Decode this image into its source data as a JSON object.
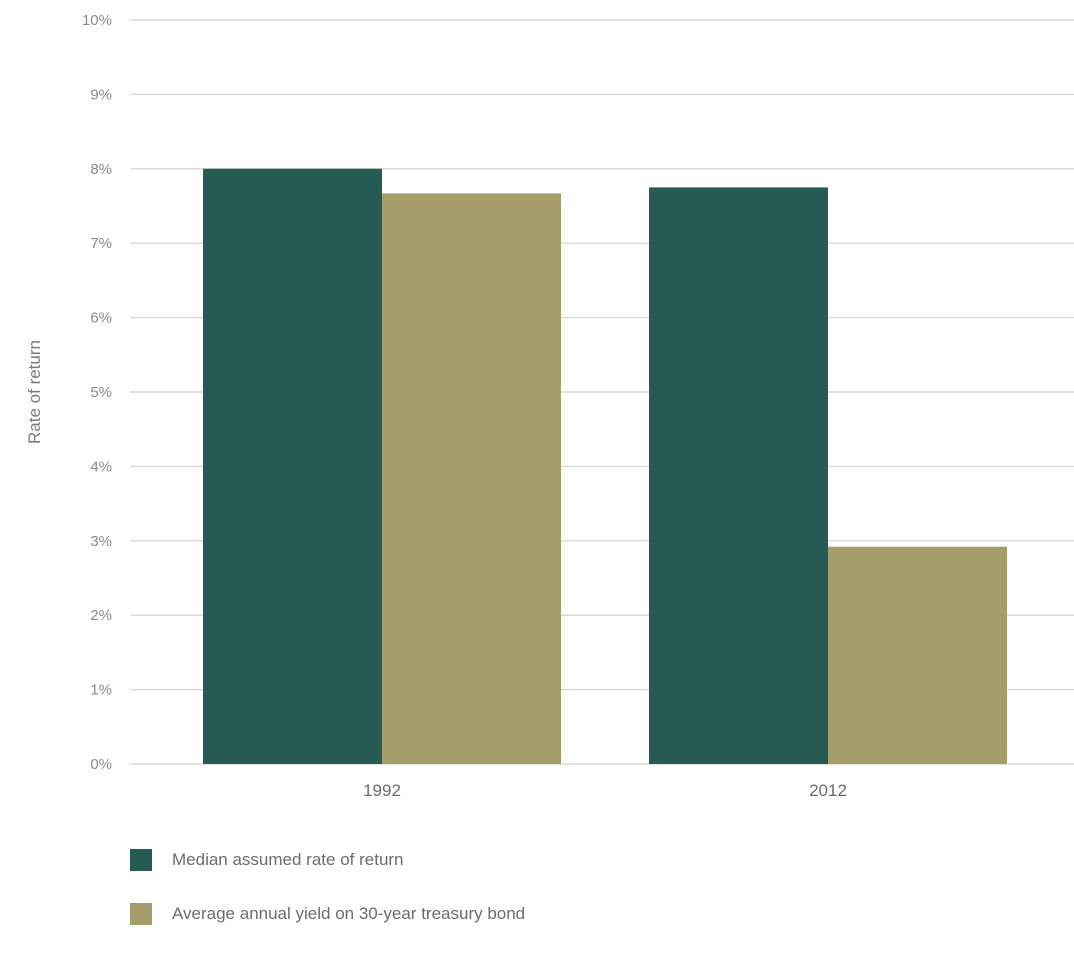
{
  "chart_data": {
    "type": "bar",
    "categories": [
      "1992",
      "2012"
    ],
    "series": [
      {
        "name": "Median assumed rate of return",
        "values": [
          8.0,
          7.75
        ],
        "color": "#265a54"
      },
      {
        "name": "Average annual yield on 30-year treasury bond",
        "values": [
          7.67,
          2.92
        ],
        "color": "#a59d6a"
      }
    ],
    "ylabel": "Rate of return",
    "yticks": [
      "0%",
      "1%",
      "2%",
      "3%",
      "4%",
      "5%",
      "6%",
      "7%",
      "8%",
      "9%",
      "10%"
    ],
    "ylim": [
      0,
      10
    ],
    "grid": true,
    "legend_position": "bottom-left"
  }
}
